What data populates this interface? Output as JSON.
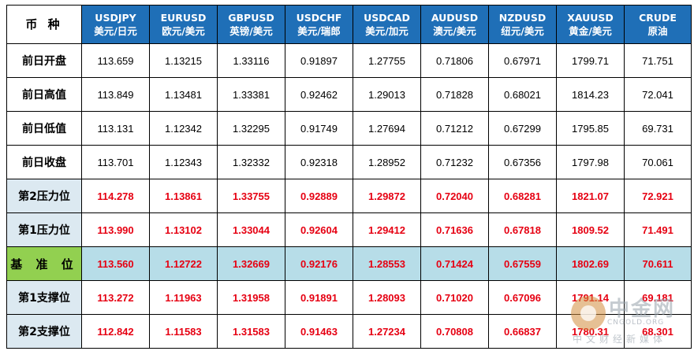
{
  "corner_label": "币 种",
  "columns": [
    {
      "code": "USDJPY",
      "cn": "美元/日元"
    },
    {
      "code": "EURUSD",
      "cn": "欧元/美元"
    },
    {
      "code": "GBPUSD",
      "cn": "英镑/美元"
    },
    {
      "code": "USDCHF",
      "cn": "美元/瑞郎"
    },
    {
      "code": "USDCAD",
      "cn": "美元/加元"
    },
    {
      "code": "AUDUSD",
      "cn": "澳元/美元"
    },
    {
      "code": "NZDUSD",
      "cn": "纽元/美元"
    },
    {
      "code": "XAUUSD",
      "cn": "黄金/美元"
    },
    {
      "code": "CRUDE",
      "cn": "原油"
    }
  ],
  "rows": [
    {
      "label": "前日开盘",
      "values": [
        "113.659",
        "1.13215",
        "1.33116",
        "0.91897",
        "1.27755",
        "0.71806",
        "0.67971",
        "1799.71",
        "71.751"
      ]
    },
    {
      "label": "前日高值",
      "values": [
        "113.849",
        "1.13481",
        "1.33381",
        "0.92462",
        "1.29013",
        "0.71828",
        "0.68021",
        "1814.23",
        "72.041"
      ]
    },
    {
      "label": "前日低值",
      "values": [
        "113.131",
        "1.12342",
        "1.32295",
        "0.91749",
        "1.27694",
        "0.71212",
        "0.67299",
        "1795.85",
        "69.731"
      ]
    },
    {
      "label": "前日收盘",
      "values": [
        "113.701",
        "1.12343",
        "1.32332",
        "0.92318",
        "1.28952",
        "0.71232",
        "0.67356",
        "1797.98",
        "70.061"
      ]
    },
    {
      "label": "第2压力位",
      "values": [
        "114.278",
        "1.13861",
        "1.33755",
        "0.92889",
        "1.29872",
        "0.72040",
        "0.68281",
        "1821.07",
        "72.921"
      ]
    },
    {
      "label": "第1压力位",
      "values": [
        "113.990",
        "1.13102",
        "1.33044",
        "0.92604",
        "1.29412",
        "0.71636",
        "0.67818",
        "1809.52",
        "71.491"
      ]
    },
    {
      "label": "基 准 位",
      "values": [
        "113.560",
        "1.12722",
        "1.32669",
        "0.92176",
        "1.28553",
        "0.71424",
        "0.67559",
        "1802.69",
        "70.611"
      ]
    },
    {
      "label": "第1支撑位",
      "values": [
        "113.272",
        "1.11963",
        "1.31958",
        "0.91891",
        "1.28093",
        "0.71020",
        "0.67096",
        "1791.14",
        "69.181"
      ]
    },
    {
      "label": "第2支撑位",
      "values": [
        "112.842",
        "1.11583",
        "1.31583",
        "0.91463",
        "1.27234",
        "0.70808",
        "0.66837",
        "1780.31",
        "68.301"
      ]
    }
  ],
  "watermark": {
    "name": "中金网",
    "url": "CNGOLD.ORG",
    "tag": "中文财经新媒体"
  },
  "colors": {
    "header_bg": "#1f6fb7",
    "level_text": "#e60012",
    "base_row_bg": "#b7dde8",
    "base_label_bg": "#92d050",
    "level_label_bg": "#dce9f1"
  }
}
